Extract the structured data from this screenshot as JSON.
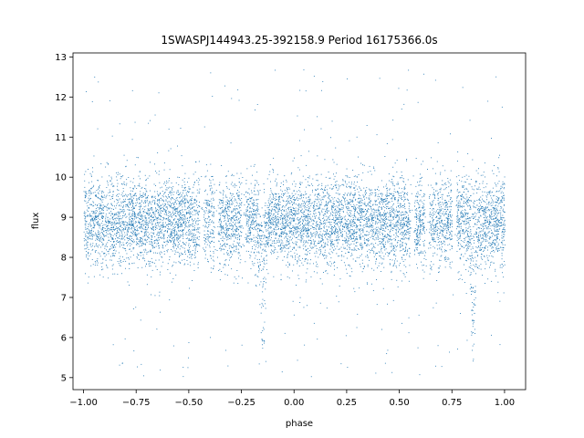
{
  "chart_data": {
    "type": "scatter",
    "title": "1SWASPJ144943.25-392158.9 Period 16175366.0s",
    "xlabel": "phase",
    "ylabel": "flux",
    "xlim": [
      -1.05,
      1.1
    ],
    "ylim": [
      4.7,
      13.1
    ],
    "xticks": [
      -1.0,
      -0.75,
      -0.5,
      -0.25,
      0.0,
      0.25,
      0.5,
      0.75,
      1.0
    ],
    "xtick_labels": [
      "−1.00",
      "−0.75",
      "−0.50",
      "−0.25",
      "0.00",
      "0.25",
      "0.50",
      "0.75",
      "1.00"
    ],
    "yticks": [
      5,
      6,
      7,
      8,
      9,
      10,
      11,
      12,
      13
    ],
    "ytick_labels": [
      "5",
      "6",
      "7",
      "8",
      "9",
      "10",
      "11",
      "12",
      "13"
    ],
    "grid": false,
    "marker_color": "#1f77b4",
    "series_profile": {
      "x_range": [
        -1.0,
        1.0
      ],
      "flux_median": 8.9,
      "core_band": [
        7.8,
        10.0
      ],
      "dip_phases": [
        -0.15,
        0.85
      ],
      "dip_min_flux": 5.6,
      "scatter_extremes": [
        5.0,
        12.7
      ],
      "gap_phases": [
        -0.44,
        -0.37,
        -0.24,
        0.56,
        0.63,
        0.76
      ]
    }
  }
}
